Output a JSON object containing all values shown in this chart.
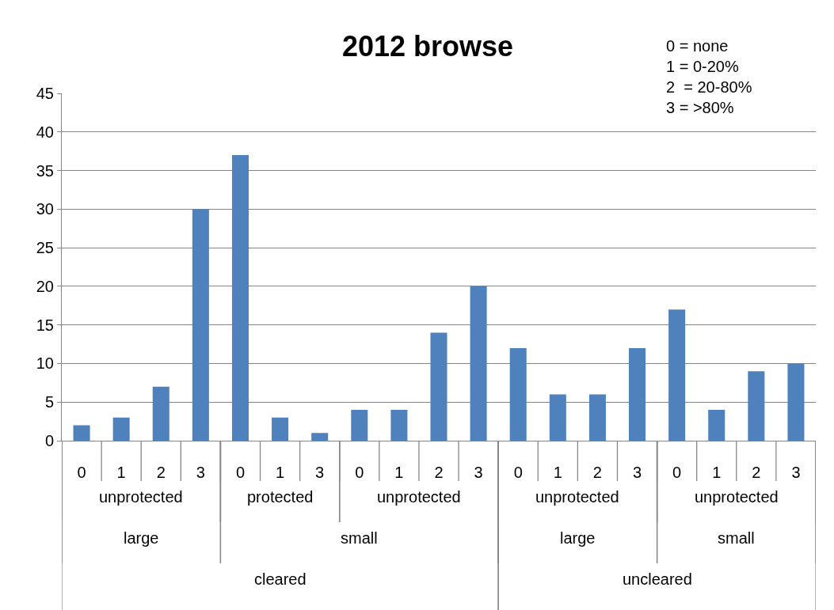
{
  "chart_data": {
    "type": "bar",
    "title": "2012 browse",
    "categories": [
      "0",
      "1",
      "2",
      "3",
      "0",
      "1",
      "3",
      "0",
      "1",
      "2",
      "3",
      "0",
      "1",
      "2",
      "3",
      "0",
      "1",
      "2",
      "3"
    ],
    "values": [
      2,
      3,
      7,
      30,
      37,
      3,
      1,
      4,
      4,
      14,
      20,
      12,
      6,
      6,
      12,
      17,
      4,
      9,
      10
    ],
    "color": "#4f81bd",
    "ylim": [
      0,
      45
    ],
    "yticks": [
      0,
      5,
      10,
      15,
      20,
      25,
      30,
      35,
      40,
      45
    ],
    "grid": "y",
    "annotations": [
      "unprotected",
      "protected",
      "unprotected",
      "unprotected",
      "unprotected",
      "large",
      "small",
      "large",
      "small",
      "cleared",
      "uncleared",
      "0 = none",
      "1 = 0-20%",
      "2  = 20-80%",
      "3 = >80%"
    ]
  }
}
